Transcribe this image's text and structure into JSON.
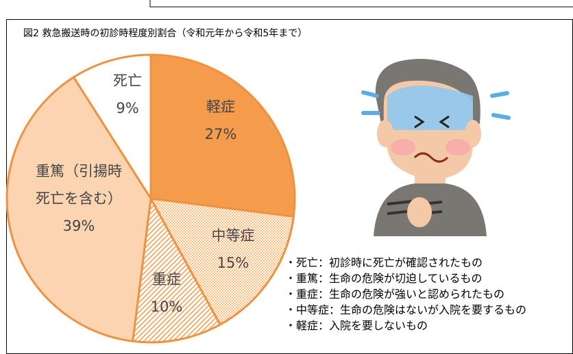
{
  "chart_data": {
    "type": "pie",
    "title": "図2 救急搬送時の初診時程度別割合（令和元年から令和5年まで）",
    "categories": [
      "軽症",
      "中等症",
      "重症",
      "重篤（引揚時\n死亡を含む）",
      "死亡"
    ],
    "values": [
      27,
      15,
      10,
      39,
      9
    ],
    "value_labels": [
      "27%",
      "15%",
      "10%",
      "39%",
      "9%"
    ],
    "colors": [
      "#f59b4c",
      "#f59b4c",
      "#f59b4c",
      "#fbd4b2",
      "#ffffff"
    ],
    "fills": [
      "solid",
      "dots",
      "hatch",
      "solid",
      "solid"
    ],
    "stroke": "#f0913f",
    "notes": [
      "・死亡：初診時に死亡が確認されたもの",
      "・重篤：生命の危険が切迫しているもの",
      "・重症：生命の危険が強いと認められたもの",
      "・中等症：生命の危険はないが入院を要するもの",
      "・軽症：入院を要しないもの"
    ]
  }
}
